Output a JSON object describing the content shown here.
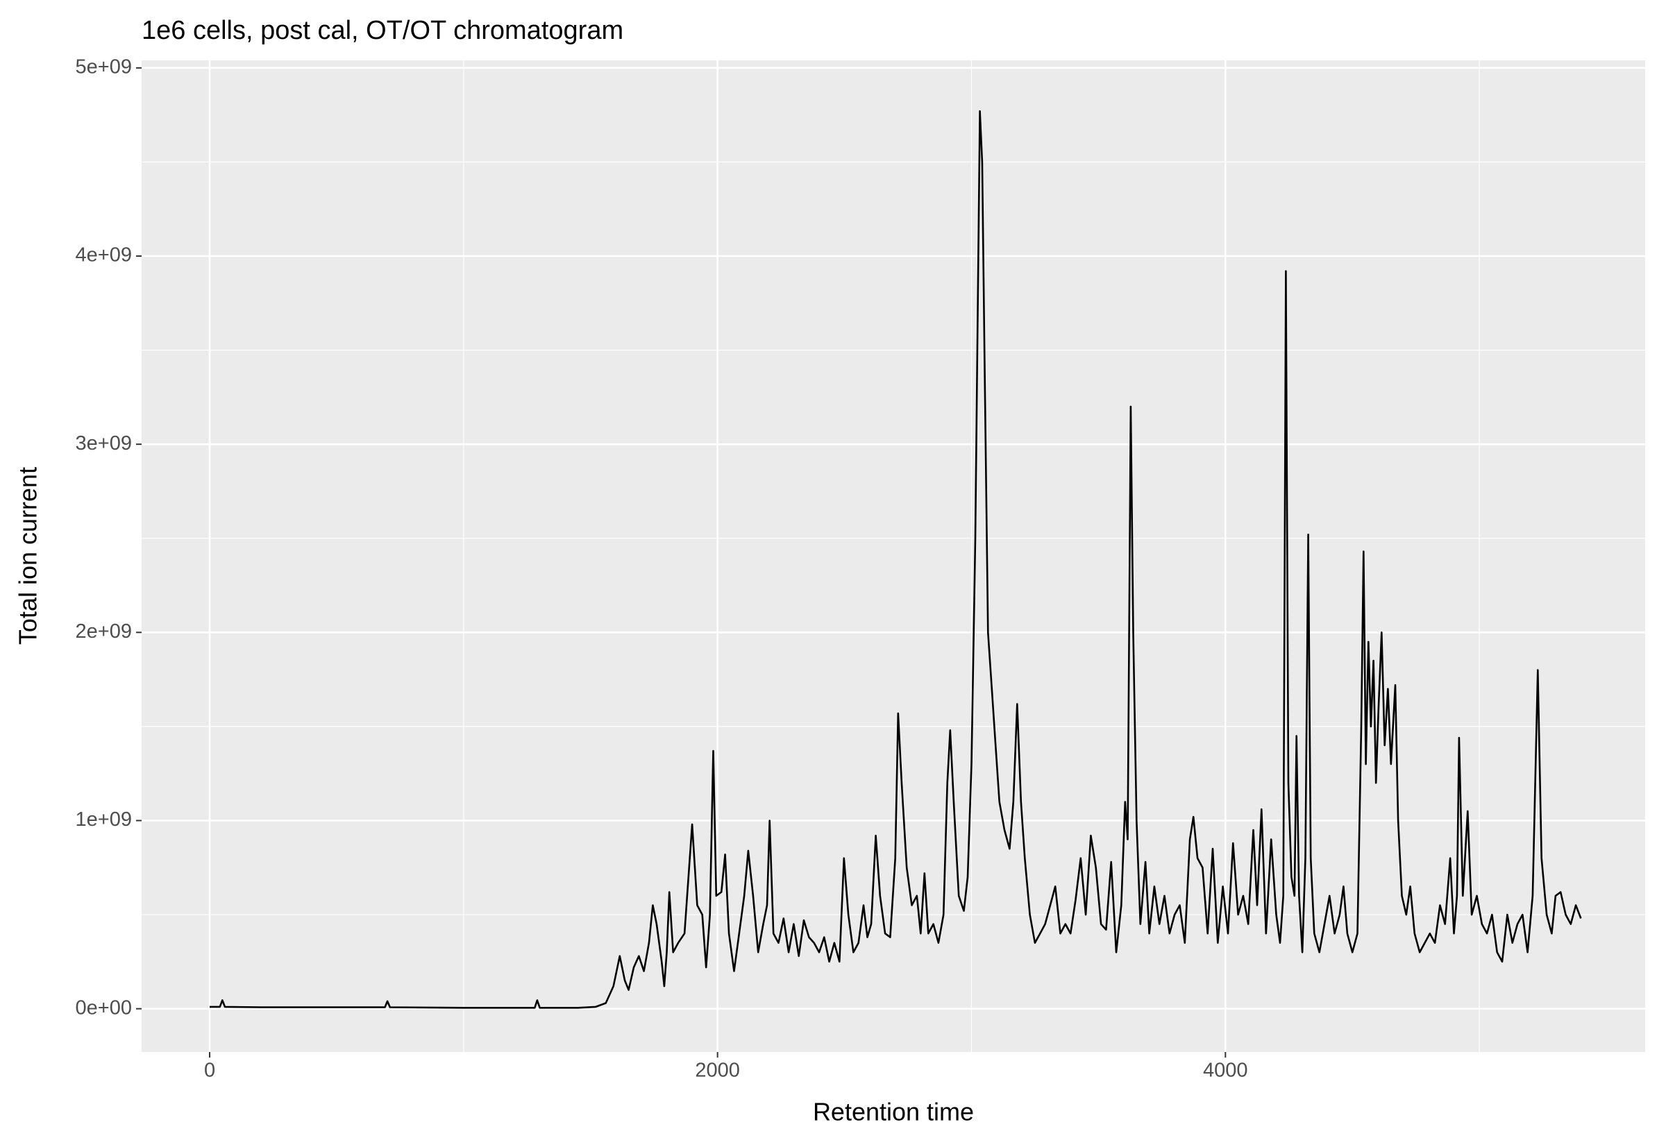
{
  "chart_data": {
    "type": "line",
    "title": "1e6 cells, post cal, OT/OT chromatogram",
    "xlabel": "Retention time",
    "ylabel": "Total ion current",
    "color": "#000000",
    "grid": true,
    "xlim": [
      -268,
      5653
    ],
    "ylim": [
      -230000000.0,
      5040000000.0
    ],
    "xticks": [
      0,
      2000,
      4000
    ],
    "x_minor_grid": [
      1000,
      3000,
      5000
    ],
    "yticks": [
      {
        "value": 0,
        "label": "0e+00"
      },
      {
        "value": 1000000000.0,
        "label": "1e+09"
      },
      {
        "value": 2000000000.0,
        "label": "2e+09"
      },
      {
        "value": 3000000000.0,
        "label": "3e+09"
      },
      {
        "value": 4000000000.0,
        "label": "4e+09"
      },
      {
        "value": 5000000000.0,
        "label": "5e+09"
      }
    ],
    "y_minor_grid": [
      500000000.0,
      1500000000.0,
      2500000000.0,
      3500000000.0,
      4500000000.0
    ],
    "x": [
      0,
      40,
      50,
      60,
      200,
      690,
      700,
      710,
      1000,
      1280,
      1290,
      1300,
      1450,
      1520,
      1560,
      1590,
      1615,
      1635,
      1650,
      1670,
      1690,
      1710,
      1730,
      1745,
      1760,
      1780,
      1790,
      1800,
      1810,
      1825,
      1845,
      1870,
      1900,
      1920,
      1940,
      1955,
      1970,
      1983,
      1995,
      2015,
      2030,
      2045,
      2065,
      2085,
      2105,
      2121,
      2140,
      2160,
      2180,
      2195,
      2205,
      2220,
      2240,
      2260,
      2280,
      2300,
      2320,
      2340,
      2360,
      2380,
      2400,
      2420,
      2440,
      2460,
      2480,
      2498,
      2515,
      2535,
      2555,
      2575,
      2590,
      2605,
      2623,
      2640,
      2660,
      2680,
      2700,
      2711,
      2725,
      2745,
      2765,
      2785,
      2800,
      2815,
      2830,
      2850,
      2870,
      2890,
      2905,
      2916,
      2930,
      2950,
      2970,
      2985,
      3000,
      3015,
      3033,
      3042,
      3052,
      3065,
      3080,
      3095,
      3110,
      3130,
      3150,
      3165,
      3180,
      3195,
      3210,
      3230,
      3250,
      3270,
      3290,
      3310,
      3330,
      3350,
      3370,
      3390,
      3410,
      3430,
      3450,
      3470,
      3490,
      3510,
      3530,
      3550,
      3570,
      3590,
      3605,
      3615,
      3627,
      3637,
      3650,
      3665,
      3685,
      3700,
      3720,
      3740,
      3760,
      3780,
      3800,
      3820,
      3840,
      3860,
      3874,
      3890,
      3910,
      3930,
      3950,
      3970,
      3990,
      4010,
      4030,
      4050,
      4070,
      4090,
      4110,
      4125,
      4142,
      4160,
      4180,
      4200,
      4215,
      4228,
      4238,
      4248,
      4260,
      4272,
      4280,
      4290,
      4303,
      4315,
      4326,
      4336,
      4350,
      4370,
      4390,
      4410,
      4430,
      4450,
      4465,
      4480,
      4500,
      4520,
      4535,
      4544,
      4553,
      4563,
      4573,
      4583,
      4593,
      4603,
      4615,
      4627,
      4640,
      4652,
      4669,
      4680,
      4695,
      4712,
      4728,
      4745,
      4765,
      4785,
      4805,
      4825,
      4845,
      4865,
      4885,
      4900,
      4912,
      4920,
      4935,
      4954,
      4970,
      4990,
      5010,
      5030,
      5050,
      5070,
      5090,
      5110,
      5130,
      5150,
      5170,
      5190,
      5210,
      5230,
      5245,
      5265,
      5285,
      5300,
      5320,
      5340,
      5360,
      5380,
      5400
    ],
    "values": [
      10000000.0,
      10000000.0,
      45000000.0,
      10000000.0,
      8000000.0,
      8000000.0,
      40000000.0,
      8000000.0,
      5000000.0,
      5000000.0,
      45000000.0,
      5000000.0,
      5000000.0,
      10000000.0,
      30000000.0,
      120000000.0,
      280000000.0,
      150000000.0,
      100000000.0,
      220000000.0,
      280000000.0,
      200000000.0,
      350000000.0,
      550000000.0,
      450000000.0,
      250000000.0,
      120000000.0,
      300000000.0,
      620000000.0,
      300000000.0,
      350000000.0,
      400000000.0,
      980000000.0,
      550000000.0,
      500000000.0,
      220000000.0,
      500000000.0,
      1370000000.0,
      600000000.0,
      620000000.0,
      820000000.0,
      400000000.0,
      200000000.0,
      400000000.0,
      600000000.0,
      840000000.0,
      600000000.0,
      300000000.0,
      450000000.0,
      550000000.0,
      1000000000.0,
      400000000.0,
      350000000.0,
      480000000.0,
      300000000.0,
      450000000.0,
      280000000.0,
      470000000.0,
      380000000.0,
      350000000.0,
      300000000.0,
      380000000.0,
      250000000.0,
      350000000.0,
      250000000.0,
      800000000.0,
      500000000.0,
      300000000.0,
      350000000.0,
      550000000.0,
      380000000.0,
      450000000.0,
      920000000.0,
      600000000.0,
      400000000.0,
      380000000.0,
      800000000.0,
      1570000000.0,
      1200000000.0,
      750000000.0,
      550000000.0,
      600000000.0,
      400000000.0,
      720000000.0,
      400000000.0,
      450000000.0,
      350000000.0,
      500000000.0,
      1200000000.0,
      1480000000.0,
      1100000000.0,
      600000000.0,
      520000000.0,
      700000000.0,
      1300000000.0,
      2500000000.0,
      4770000000.0,
      4500000000.0,
      3400000000.0,
      2000000000.0,
      1700000000.0,
      1400000000.0,
      1100000000.0,
      950000000.0,
      850000000.0,
      1100000000.0,
      1620000000.0,
      1100000000.0,
      800000000.0,
      500000000.0,
      350000000.0,
      400000000.0,
      450000000.0,
      550000000.0,
      650000000.0,
      400000000.0,
      450000000.0,
      400000000.0,
      580000000.0,
      800000000.0,
      500000000.0,
      920000000.0,
      750000000.0,
      450000000.0,
      420000000.0,
      780000000.0,
      300000000.0,
      550000000.0,
      1100000000.0,
      900000000.0,
      3200000000.0,
      2000000000.0,
      1000000000.0,
      450000000.0,
      780000000.0,
      400000000.0,
      650000000.0,
      450000000.0,
      600000000.0,
      400000000.0,
      500000000.0,
      550000000.0,
      350000000.0,
      900000000.0,
      1020000000.0,
      800000000.0,
      750000000.0,
      400000000.0,
      850000000.0,
      350000000.0,
      650000000.0,
      400000000.0,
      880000000.0,
      500000000.0,
      600000000.0,
      450000000.0,
      950000000.0,
      550000000.0,
      1060000000.0,
      400000000.0,
      900000000.0,
      500000000.0,
      350000000.0,
      600000000.0,
      3920000000.0,
      1200000000.0,
      700000000.0,
      600000000.0,
      1450000000.0,
      600000000.0,
      300000000.0,
      800000000.0,
      2520000000.0,
      800000000.0,
      400000000.0,
      300000000.0,
      450000000.0,
      600000000.0,
      400000000.0,
      500000000.0,
      650000000.0,
      400000000.0,
      300000000.0,
      400000000.0,
      1500000000.0,
      2430000000.0,
      1300000000.0,
      1950000000.0,
      1500000000.0,
      1850000000.0,
      1200000000.0,
      1600000000.0,
      2000000000.0,
      1400000000.0,
      1700000000.0,
      1300000000.0,
      1720000000.0,
      1000000000.0,
      600000000.0,
      500000000.0,
      650000000.0,
      400000000.0,
      300000000.0,
      350000000.0,
      400000000.0,
      350000000.0,
      550000000.0,
      450000000.0,
      800000000.0,
      400000000.0,
      600000000.0,
      1440000000.0,
      600000000.0,
      1050000000.0,
      500000000.0,
      600000000.0,
      450000000.0,
      400000000.0,
      500000000.0,
      300000000.0,
      250000000.0,
      500000000.0,
      350000000.0,
      450000000.0,
      500000000.0,
      300000000.0,
      600000000.0,
      1800000000.0,
      800000000.0,
      500000000.0,
      400000000.0,
      600000000.0,
      620000000.0,
      500000000.0,
      450000000.0,
      550000000.0,
      480000000.0
    ]
  }
}
